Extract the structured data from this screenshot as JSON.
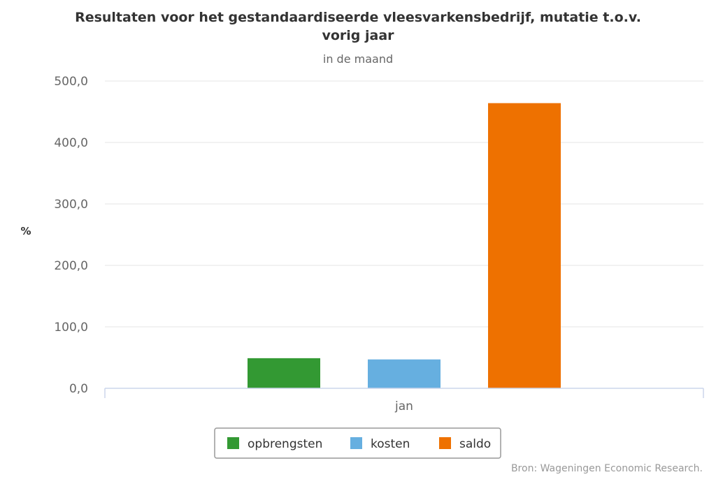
{
  "chart_data": {
    "type": "bar",
    "title": "Resultaten voor het gestandaardiseerde vleesvarkensbedrijf, mutatie t.o.v. vorig jaar",
    "title_lines": [
      "Resultaten voor het gestandaardiseerde vleesvarkensbedrijf, mutatie t.o.v.",
      "vorig jaar"
    ],
    "subtitle": "in de maand",
    "xlabel": "",
    "ylabel": "%",
    "categories": [
      "jan"
    ],
    "series": [
      {
        "name": "opbrengsten",
        "values": [
          49
        ],
        "color": "#339933"
      },
      {
        "name": "kosten",
        "values": [
          47
        ],
        "color": "#66afe0"
      },
      {
        "name": "saldo",
        "values": [
          464
        ],
        "color": "#ee7100"
      }
    ],
    "ylim": [
      0,
      500
    ],
    "yticks": [
      0,
      100,
      200,
      300,
      400,
      500
    ],
    "ytick_labels": [
      "0,0",
      "100,0",
      "200,0",
      "300,0",
      "400,0",
      "500,0"
    ],
    "grid": true,
    "legend_position": "bottom-center",
    "credits": "Bron: Wageningen Economic Research."
  }
}
